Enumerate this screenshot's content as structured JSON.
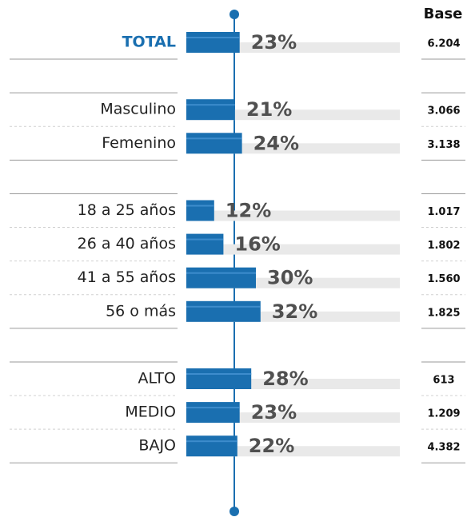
{
  "chart_data": {
    "type": "bar",
    "categories": [
      "TOTAL",
      null,
      "Masculino",
      "Femenino",
      null,
      "18 a 25 años",
      "26 a 40 años",
      "41 a 55 años",
      "56 o más",
      null,
      "ALTO",
      "MEDIO",
      "BAJO"
    ],
    "values": [
      23,
      null,
      21,
      24,
      null,
      12,
      16,
      30,
      32,
      null,
      28,
      23,
      22
    ],
    "value_labels": [
      "23%",
      null,
      "21%",
      "24%",
      null,
      "12%",
      "16%",
      "30%",
      "32%",
      null,
      "28%",
      "23%",
      "22%"
    ],
    "base_title": "Base",
    "base": [
      "6.204",
      null,
      "3.066",
      "3.138",
      null,
      "1.017",
      "1.802",
      "1.560",
      "1.825",
      null,
      "613",
      "1.209",
      "4.382"
    ],
    "color": "#1a6fb0",
    "xlim": [
      0,
      100
    ]
  }
}
